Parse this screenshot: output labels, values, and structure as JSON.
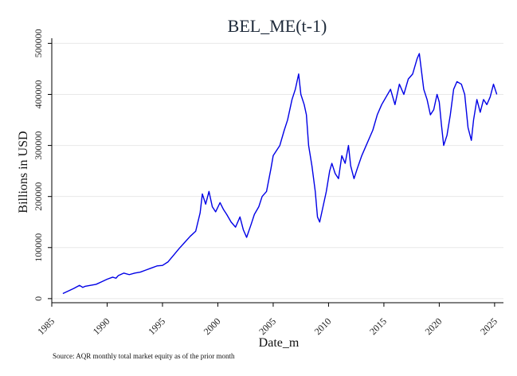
{
  "chart_data": {
    "type": "line",
    "title": "BEL_ME(t-1)",
    "xlabel": "Date_m",
    "ylabel": "Billions in USD",
    "source_note": "Source: AQR monthly total market equity as of the prior month",
    "xlim": [
      1985,
      2025.8
    ],
    "ylim": [
      -8000,
      510000
    ],
    "x_ticks": [
      1985,
      1990,
      1995,
      2000,
      2005,
      2010,
      2015,
      2020,
      2025
    ],
    "y_ticks": [
      0,
      100000,
      200000,
      300000,
      400000,
      500000
    ],
    "grid": true,
    "color": "#0000e6",
    "series": [
      {
        "x": [
          1986.0,
          1986.5,
          1987.0,
          1987.5,
          1987.8,
          1988.0,
          1988.5,
          1989.0,
          1989.5,
          1990.0,
          1990.5,
          1990.8,
          1991.0,
          1991.5,
          1992.0,
          1992.5,
          1993.0,
          1993.5,
          1994.0,
          1994.5,
          1995.0,
          1995.5,
          1996.0,
          1996.5,
          1997.0,
          1997.5,
          1998.0,
          1998.4,
          1998.6,
          1998.9,
          1999.2,
          1999.5,
          1999.8,
          2000.2,
          2000.5,
          2000.8,
          2001.2,
          2001.6,
          2002.0,
          2002.3,
          2002.6,
          2003.0,
          2003.3,
          2003.7,
          2004.0,
          2004.4,
          2004.8,
          2005.0,
          2005.3,
          2005.6,
          2006.0,
          2006.3,
          2006.7,
          2007.0,
          2007.3,
          2007.5,
          2007.8,
          2008.0,
          2008.2,
          2008.5,
          2008.8,
          2009.0,
          2009.2,
          2009.5,
          2009.8,
          2010.1,
          2010.3,
          2010.6,
          2010.9,
          2011.2,
          2011.5,
          2011.8,
          2012.0,
          2012.3,
          2012.6,
          2013.0,
          2013.4,
          2013.8,
          2014.0,
          2014.4,
          2014.8,
          2015.2,
          2015.6,
          2016.0,
          2016.4,
          2016.8,
          2017.2,
          2017.6,
          2018.0,
          2018.2,
          2018.6,
          2018.9,
          2019.2,
          2019.5,
          2019.8,
          2020.0,
          2020.2,
          2020.4,
          2020.7,
          2021.0,
          2021.3,
          2021.6,
          2022.0,
          2022.3,
          2022.6,
          2022.9,
          2023.1,
          2023.4,
          2023.7,
          2024.0,
          2024.3,
          2024.6,
          2024.9,
          2025.2
        ],
        "y": [
          10000,
          15000,
          20000,
          26000,
          22000,
          24000,
          26000,
          28000,
          33000,
          38000,
          42000,
          40000,
          45000,
          50000,
          47000,
          50000,
          52000,
          56000,
          60000,
          64000,
          65000,
          72000,
          85000,
          98000,
          110000,
          122000,
          132000,
          168000,
          205000,
          185000,
          210000,
          180000,
          170000,
          188000,
          175000,
          165000,
          150000,
          140000,
          160000,
          135000,
          120000,
          145000,
          165000,
          180000,
          200000,
          210000,
          255000,
          280000,
          290000,
          300000,
          330000,
          350000,
          390000,
          410000,
          440000,
          400000,
          380000,
          360000,
          300000,
          260000,
          210000,
          160000,
          150000,
          180000,
          210000,
          250000,
          265000,
          245000,
          235000,
          280000,
          265000,
          300000,
          260000,
          235000,
          255000,
          280000,
          300000,
          320000,
          330000,
          360000,
          380000,
          395000,
          410000,
          380000,
          420000,
          400000,
          430000,
          440000,
          470000,
          480000,
          410000,
          390000,
          360000,
          370000,
          400000,
          385000,
          340000,
          300000,
          320000,
          360000,
          410000,
          425000,
          420000,
          400000,
          335000,
          310000,
          350000,
          390000,
          365000,
          390000,
          380000,
          395000,
          420000,
          400000
        ]
      }
    ]
  }
}
